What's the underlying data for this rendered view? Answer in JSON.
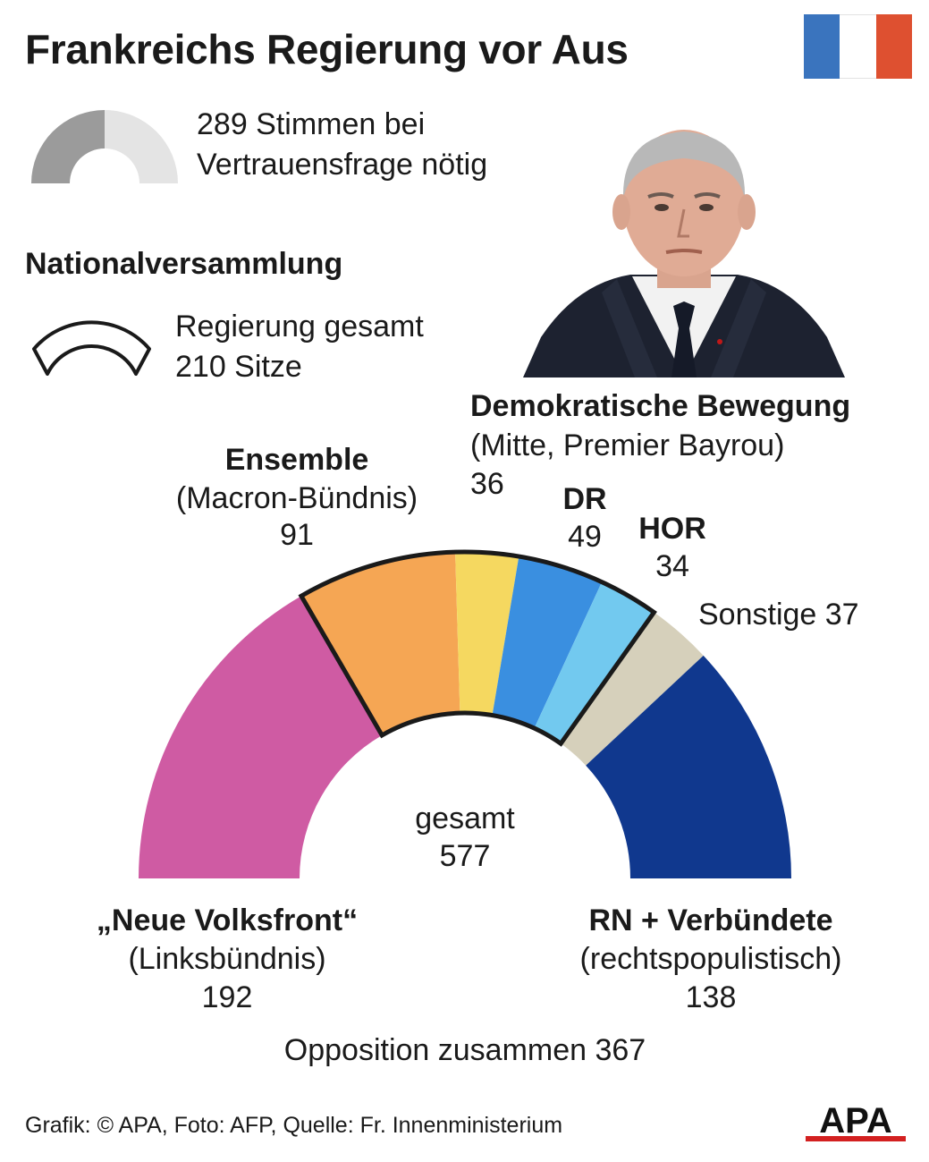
{
  "title": "Frankreichs Regierung vor Aus",
  "flag": {
    "colors": [
      "#3a74be",
      "#ffffff",
      "#de5030"
    ]
  },
  "majority_note": {
    "line1": "289 Stimmen bei",
    "line2": "Vertrauensfrage nötig"
  },
  "assembly_heading": "Nationalversammlung",
  "government_note": {
    "line1": "Regierung gesamt",
    "line2": "210 Sitze"
  },
  "labels": {
    "ensemble": {
      "name": "Ensemble",
      "desc": "(Macron-Bündnis)",
      "seats": "91"
    },
    "demokratische": {
      "name": "Demokratische Bewegung",
      "desc": "(Mitte, Premier Bayrou)",
      "seats": "36"
    },
    "dr": {
      "name": "DR",
      "seats": "49"
    },
    "hor": {
      "name": "HOR",
      "seats": "34"
    },
    "sonstige": {
      "text": "Sonstige 37"
    },
    "nfp": {
      "name": "„Neue Volksfront“",
      "desc": "(Linksbündnis)",
      "seats": "192"
    },
    "rn": {
      "name": "RN + Verbündete",
      "desc": "(rechtspopulistisch)",
      "seats": "138"
    },
    "total": {
      "label": "gesamt",
      "value": "577"
    },
    "opposition": "Opposition zusammen 367"
  },
  "footer": "Grafik: © APA, Foto: AFP, Quelle: Fr. Innenministerium",
  "logo_text": "APA",
  "chart_data": {
    "type": "pie",
    "shape": "half-donut",
    "total": 577,
    "majority_threshold": 289,
    "government_total": 210,
    "opposition_total": 367,
    "categories": [
      "„Neue Volksfront“",
      "Ensemble",
      "Demokratische Bewegung",
      "DR",
      "HOR",
      "Sonstige",
      "RN + Verbündete"
    ],
    "values": [
      192,
      91,
      36,
      49,
      34,
      37,
      138
    ],
    "colors": [
      "#cf5ba3",
      "#f5a654",
      "#f5d860",
      "#3a8fe0",
      "#72c9ef",
      "#d6d0bb",
      "#10388e"
    ],
    "government_members": [
      "Ensemble",
      "Demokratische Bewegung",
      "DR",
      "HOR"
    ]
  }
}
